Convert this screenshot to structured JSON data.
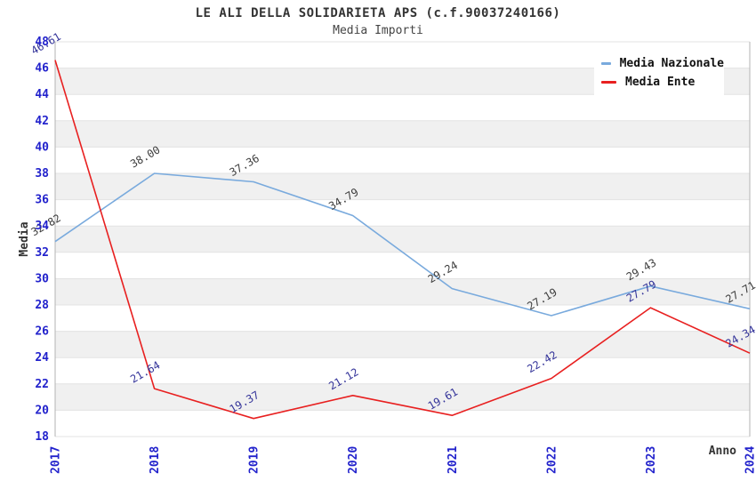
{
  "header": {
    "title": "LE ALI DELLA SOLIDARIETA APS (c.f.90037240166)",
    "subtitle": "Media Importi"
  },
  "chart_data": {
    "type": "line",
    "x": [
      "2017",
      "2018",
      "2019",
      "2020",
      "2021",
      "2022",
      "2023",
      "2024"
    ],
    "series": [
      {
        "name": "Media Nazionale",
        "color": "#79aadd",
        "label_color": "#3d3d3d",
        "values": [
          32.82,
          38.0,
          37.36,
          34.79,
          29.24,
          27.19,
          29.43,
          27.71
        ],
        "labels": [
          "32.82",
          "38.00",
          "37.36",
          "34.79",
          "29.24",
          "27.19",
          "29.43",
          "27.71"
        ]
      },
      {
        "name": "Media Ente",
        "color": "#e82020",
        "label_color": "#333399",
        "values": [
          46.61,
          21.64,
          19.37,
          21.12,
          19.61,
          22.42,
          27.79,
          24.34
        ],
        "labels": [
          "46.61",
          "21.64",
          "19.37",
          "21.12",
          "19.61",
          "22.42",
          "27.79",
          "24.34"
        ]
      }
    ],
    "xlabel": "Anno",
    "ylabel": "Media",
    "ylim": [
      18,
      48
    ],
    "yticks": [
      18,
      20,
      22,
      24,
      26,
      28,
      30,
      32,
      34,
      36,
      38,
      40,
      42,
      44,
      46,
      48
    ],
    "legend_position": "top-right",
    "grid": "horizontal-bands-alternating",
    "colors": {
      "band": "#f0f0f0",
      "gridline": "#e3e3e3",
      "axis_edge": "#b3b3b3",
      "tick_label": "#2222cc",
      "axis_title": "#333333"
    }
  }
}
